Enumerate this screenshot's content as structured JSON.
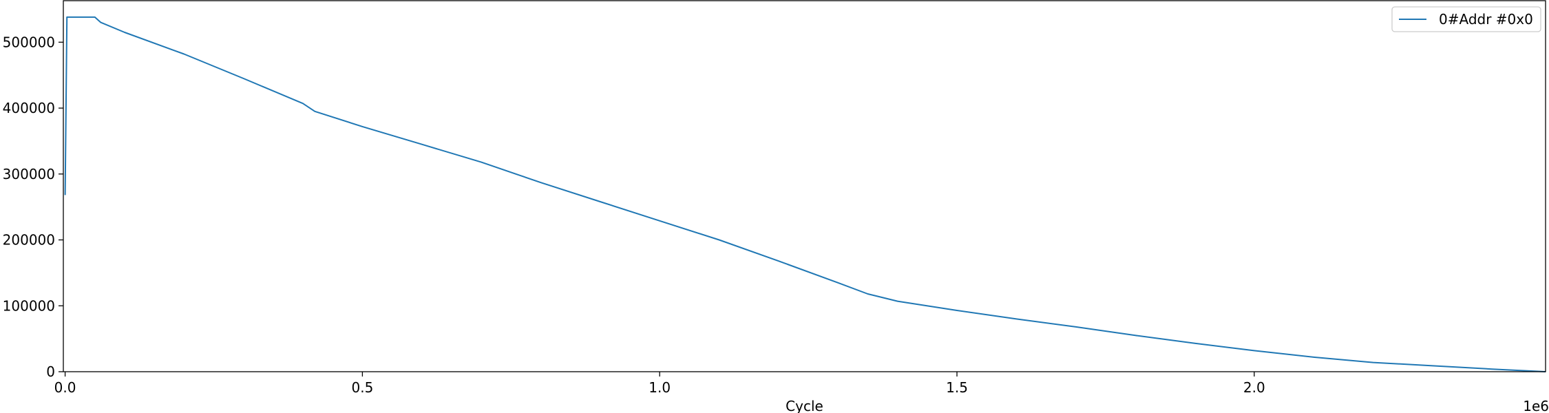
{
  "chart_data": {
    "type": "line",
    "xlabel": "Cycle",
    "ylabel": "",
    "x_offset_label": "1e6",
    "xlim": [
      -0.003,
      2.49
    ],
    "ylim": [
      0,
      563000
    ],
    "xticks": [
      {
        "value": 0.0,
        "label": "0.0"
      },
      {
        "value": 0.5,
        "label": "0.5"
      },
      {
        "value": 1.0,
        "label": "1.0"
      },
      {
        "value": 1.5,
        "label": "1.5"
      },
      {
        "value": 2.0,
        "label": "2.0"
      }
    ],
    "yticks": [
      {
        "value": 0,
        "label": "0"
      },
      {
        "value": 100000,
        "label": "100000"
      },
      {
        "value": 200000,
        "label": "200000"
      },
      {
        "value": 300000,
        "label": "300000"
      },
      {
        "value": 400000,
        "label": "400000"
      },
      {
        "value": 500000,
        "label": "500000"
      }
    ],
    "grid": false,
    "legend_position": "top-right",
    "series": [
      {
        "name": "0#Addr #0x0",
        "color": "#1f77b4",
        "x": [
          0.0,
          0.003,
          0.05,
          0.06,
          0.1,
          0.2,
          0.3,
          0.4,
          0.42,
          0.5,
          0.6,
          0.7,
          0.8,
          0.9,
          1.0,
          1.1,
          1.2,
          1.3,
          1.35,
          1.4,
          1.5,
          1.6,
          1.7,
          1.8,
          1.9,
          2.0,
          2.1,
          2.2,
          2.3,
          2.4,
          2.49
        ],
        "y": [
          268000,
          538000,
          538000,
          530000,
          515000,
          482000,
          445000,
          407000,
          395000,
          372000,
          345000,
          318000,
          287000,
          258000,
          229000,
          200000,
          168000,
          135000,
          118000,
          107000,
          93000,
          80000,
          68000,
          55000,
          43000,
          32000,
          22000,
          14000,
          9000,
          4000,
          0
        ]
      }
    ]
  }
}
